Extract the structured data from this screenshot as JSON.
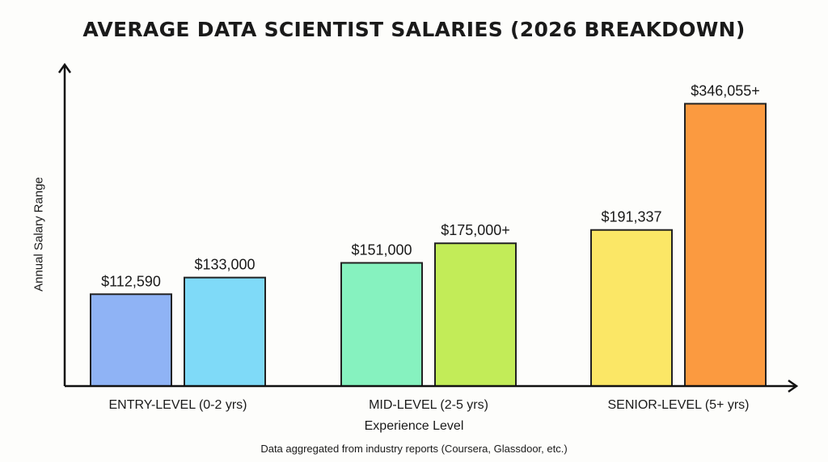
{
  "chart_data": {
    "type": "bar",
    "title": "AVERAGE DATA SCIENTIST SALARIES (2026 BREAKDOWN)",
    "xlabel": "Experience Level",
    "ylabel": "Annual Salary Range",
    "footnote": "Data aggregated from industry reports (Coursera, Glassdoor, etc.)",
    "categories": [
      "ENTRY-LEVEL (0-2 yrs)",
      "MID-LEVEL (2-5 yrs)",
      "SENIOR-LEVEL (5+ yrs)"
    ],
    "groups": [
      {
        "bars": [
          {
            "value": 112590,
            "label": "$112,590",
            "color": "#8fb3f5"
          },
          {
            "value": 133000,
            "label": "$133,000",
            "color": "#7fdaf8"
          }
        ]
      },
      {
        "bars": [
          {
            "value": 151000,
            "label": "$151,000",
            "color": "#86f2bf"
          },
          {
            "value": 175000,
            "label": "$175,000+",
            "color": "#c2ec58"
          }
        ]
      },
      {
        "bars": [
          {
            "value": 191337,
            "label": "$191,337",
            "color": "#fbe766"
          },
          {
            "value": 346055,
            "label": "$346,055+",
            "color": "#fb9a40"
          }
        ]
      }
    ],
    "ylim": [
      0,
      394000
    ],
    "grid": false,
    "y_ticks_shown": false
  }
}
